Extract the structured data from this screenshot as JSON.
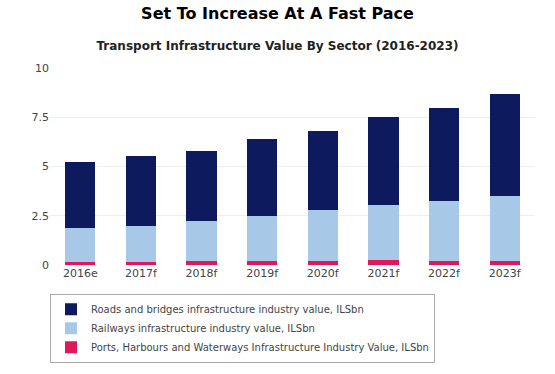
{
  "chart_data": {
    "type": "bar",
    "stacked": true,
    "title": "Set To Increase At A Fast Pace",
    "subtitle": "Transport Infrastructure Value By Sector (2016-2023)",
    "categories": [
      "2016e",
      "2017f",
      "2018f",
      "2019f",
      "2020f",
      "2021f",
      "2022f",
      "2023f"
    ],
    "series": [
      {
        "name": "Ports, Harbours and Waterways Infrastructure Industry Value, ILSbn",
        "color": "#e0185a",
        "values": [
          0.15,
          0.15,
          0.18,
          0.2,
          0.22,
          0.25,
          0.18,
          0.18
        ]
      },
      {
        "name": "Railways infrastructure industry value, ILSbn",
        "color": "#a8c8e8",
        "values": [
          1.75,
          1.85,
          2.05,
          2.3,
          2.55,
          2.8,
          3.05,
          3.3
        ]
      },
      {
        "name": "Roads and bridges infrastructure industry value, ILSbn",
        "color": "#0d1b5e",
        "values": [
          3.35,
          3.55,
          3.57,
          3.9,
          4.03,
          4.45,
          4.75,
          5.22
        ]
      }
    ],
    "ylim": [
      0,
      10
    ],
    "yticks": [
      0,
      2.5,
      5,
      7.5,
      10
    ],
    "grid": true,
    "legend": "lower left"
  }
}
